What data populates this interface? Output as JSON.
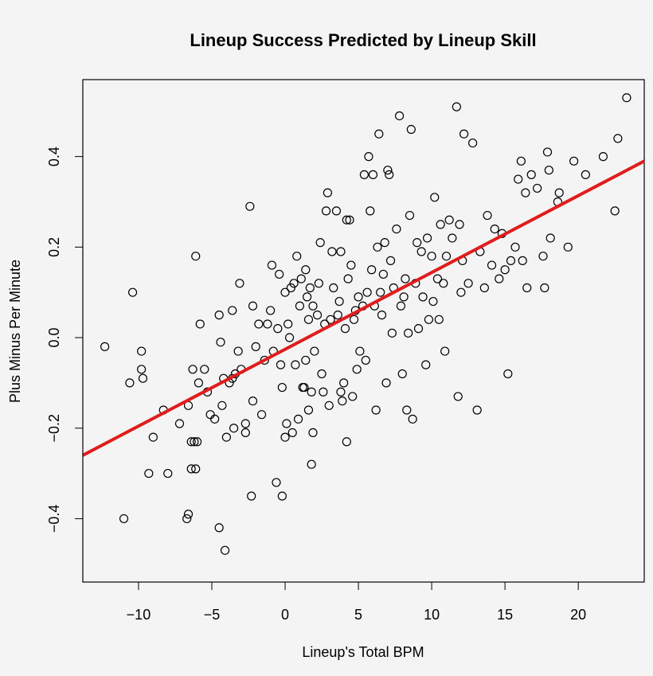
{
  "chart_data": {
    "type": "scatter",
    "title": "Lineup Success Predicted by Lineup Skill",
    "xlabel": "Lineup's Total BPM",
    "ylabel": "Plus Minus Per Minute",
    "xlim": [
      -13.8,
      24.5
    ],
    "ylim": [
      -0.54,
      0.57
    ],
    "x_ticks": [
      -10,
      -5,
      0,
      5,
      10,
      15,
      20
    ],
    "x_tick_labels": [
      "−10",
      "−5",
      "0",
      "5",
      "10",
      "15",
      "20"
    ],
    "y_ticks": [
      -0.4,
      -0.2,
      0.0,
      0.2,
      0.4
    ],
    "y_tick_labels": [
      "−0.4",
      "−0.2",
      "0.0",
      "0.2",
      "0.4"
    ],
    "grid": false,
    "marker_color": "#000000",
    "fit_line": {
      "color": "#e11c1c",
      "x": [
        -13.8,
        24.5
      ],
      "y": [
        -0.26,
        0.39
      ]
    },
    "points": [
      [
        -12.3,
        -0.02
      ],
      [
        -10.6,
        -0.1
      ],
      [
        -10.4,
        0.1
      ],
      [
        -9.8,
        -0.03
      ],
      [
        -9.8,
        -0.07
      ],
      [
        -9.7,
        -0.09
      ],
      [
        -9.3,
        -0.3
      ],
      [
        -9.0,
        -0.22
      ],
      [
        -11.0,
        -0.4
      ],
      [
        -8.3,
        -0.16
      ],
      [
        -8.0,
        -0.3
      ],
      [
        -7.2,
        -0.19
      ],
      [
        -6.7,
        -0.4
      ],
      [
        -6.6,
        -0.39
      ],
      [
        -6.6,
        -0.15
      ],
      [
        -6.4,
        -0.23
      ],
      [
        -6.4,
        -0.29
      ],
      [
        -6.3,
        -0.07
      ],
      [
        -6.2,
        -0.23
      ],
      [
        -6.1,
        0.18
      ],
      [
        -6.1,
        -0.29
      ],
      [
        -6.0,
        -0.23
      ],
      [
        -5.9,
        -0.1
      ],
      [
        -5.8,
        0.03
      ],
      [
        -5.5,
        -0.07
      ],
      [
        -5.3,
        -0.12
      ],
      [
        -5.1,
        -0.17
      ],
      [
        -4.8,
        -0.18
      ],
      [
        -4.5,
        -0.42
      ],
      [
        -4.5,
        0.05
      ],
      [
        -4.4,
        -0.01
      ],
      [
        -4.3,
        -0.15
      ],
      [
        -4.2,
        -0.09
      ],
      [
        -4.1,
        -0.47
      ],
      [
        -4.0,
        -0.22
      ],
      [
        -3.8,
        -0.1
      ],
      [
        -3.6,
        -0.09
      ],
      [
        -3.6,
        0.06
      ],
      [
        -3.5,
        -0.2
      ],
      [
        -3.4,
        -0.08
      ],
      [
        -3.2,
        -0.03
      ],
      [
        -3.1,
        0.12
      ],
      [
        -3.0,
        -0.07
      ],
      [
        -2.7,
        -0.21
      ],
      [
        -2.7,
        -0.19
      ],
      [
        -2.4,
        0.29
      ],
      [
        -2.3,
        -0.35
      ],
      [
        -2.2,
        0.07
      ],
      [
        -2.2,
        -0.14
      ],
      [
        -2.0,
        -0.02
      ],
      [
        -1.8,
        0.03
      ],
      [
        -1.6,
        -0.17
      ],
      [
        -1.4,
        -0.05
      ],
      [
        -1.2,
        0.03
      ],
      [
        -1.0,
        0.06
      ],
      [
        -0.9,
        0.16
      ],
      [
        -0.8,
        -0.03
      ],
      [
        -0.6,
        -0.32
      ],
      [
        -0.5,
        0.02
      ],
      [
        -0.4,
        0.14
      ],
      [
        -0.3,
        -0.06
      ],
      [
        -0.2,
        -0.35
      ],
      [
        -0.2,
        -0.11
      ],
      [
        0.0,
        0.1
      ],
      [
        0.0,
        -0.22
      ],
      [
        0.1,
        -0.19
      ],
      [
        0.2,
        0.03
      ],
      [
        0.3,
        0.0
      ],
      [
        0.4,
        0.11
      ],
      [
        0.5,
        -0.21
      ],
      [
        0.6,
        0.12
      ],
      [
        0.7,
        -0.06
      ],
      [
        0.8,
        0.18
      ],
      [
        0.9,
        -0.18
      ],
      [
        1.0,
        0.07
      ],
      [
        1.1,
        0.13
      ],
      [
        1.2,
        -0.11
      ],
      [
        1.3,
        -0.11
      ],
      [
        1.4,
        -0.05
      ],
      [
        1.4,
        0.15
      ],
      [
        1.5,
        0.09
      ],
      [
        1.6,
        0.04
      ],
      [
        1.6,
        -0.16
      ],
      [
        1.7,
        0.11
      ],
      [
        1.8,
        -0.12
      ],
      [
        1.8,
        -0.28
      ],
      [
        1.9,
        0.07
      ],
      [
        1.9,
        -0.21
      ],
      [
        2.0,
        -0.03
      ],
      [
        2.2,
        0.05
      ],
      [
        2.3,
        0.12
      ],
      [
        2.4,
        0.21
      ],
      [
        2.5,
        -0.08
      ],
      [
        2.6,
        -0.12
      ],
      [
        2.7,
        0.03
      ],
      [
        2.8,
        0.28
      ],
      [
        2.9,
        0.32
      ],
      [
        3.0,
        -0.15
      ],
      [
        3.1,
        0.04
      ],
      [
        3.2,
        0.19
      ],
      [
        3.3,
        0.11
      ],
      [
        3.5,
        0.28
      ],
      [
        3.6,
        0.05
      ],
      [
        3.7,
        0.08
      ],
      [
        3.8,
        0.19
      ],
      [
        3.8,
        -0.12
      ],
      [
        3.9,
        -0.14
      ],
      [
        4.0,
        -0.1
      ],
      [
        4.1,
        0.02
      ],
      [
        4.2,
        0.26
      ],
      [
        4.2,
        -0.23
      ],
      [
        4.3,
        0.13
      ],
      [
        4.4,
        0.26
      ],
      [
        4.5,
        0.16
      ],
      [
        4.6,
        -0.13
      ],
      [
        4.7,
        0.04
      ],
      [
        4.8,
        0.06
      ],
      [
        4.9,
        -0.07
      ],
      [
        5.0,
        0.09
      ],
      [
        5.1,
        -0.03
      ],
      [
        5.3,
        0.07
      ],
      [
        5.4,
        0.36
      ],
      [
        5.5,
        -0.05
      ],
      [
        5.6,
        0.1
      ],
      [
        5.7,
        0.4
      ],
      [
        5.8,
        0.28
      ],
      [
        5.9,
        0.15
      ],
      [
        6.0,
        0.36
      ],
      [
        6.1,
        0.07
      ],
      [
        6.2,
        -0.16
      ],
      [
        6.3,
        0.2
      ],
      [
        6.4,
        0.45
      ],
      [
        6.5,
        0.1
      ],
      [
        6.6,
        0.05
      ],
      [
        6.7,
        0.14
      ],
      [
        6.8,
        0.21
      ],
      [
        6.9,
        -0.1
      ],
      [
        7.0,
        0.37
      ],
      [
        7.1,
        0.36
      ],
      [
        7.2,
        0.17
      ],
      [
        7.3,
        0.01
      ],
      [
        7.4,
        0.11
      ],
      [
        7.6,
        0.24
      ],
      [
        7.8,
        0.49
      ],
      [
        7.9,
        0.07
      ],
      [
        8.0,
        -0.08
      ],
      [
        8.1,
        0.09
      ],
      [
        8.2,
        0.13
      ],
      [
        8.3,
        -0.16
      ],
      [
        8.4,
        0.01
      ],
      [
        8.5,
        0.27
      ],
      [
        8.6,
        0.46
      ],
      [
        8.7,
        -0.18
      ],
      [
        8.9,
        0.12
      ],
      [
        9.0,
        0.21
      ],
      [
        9.1,
        0.02
      ],
      [
        9.3,
        0.19
      ],
      [
        9.4,
        0.09
      ],
      [
        9.6,
        -0.06
      ],
      [
        9.7,
        0.22
      ],
      [
        9.8,
        0.04
      ],
      [
        10.0,
        0.18
      ],
      [
        10.1,
        0.08
      ],
      [
        10.2,
        0.31
      ],
      [
        10.4,
        0.13
      ],
      [
        10.5,
        0.04
      ],
      [
        10.6,
        0.25
      ],
      [
        10.8,
        0.12
      ],
      [
        10.9,
        -0.03
      ],
      [
        11.0,
        0.18
      ],
      [
        11.2,
        0.26
      ],
      [
        11.4,
        0.22
      ],
      [
        11.7,
        0.51
      ],
      [
        11.8,
        -0.13
      ],
      [
        11.9,
        0.25
      ],
      [
        12.0,
        0.1
      ],
      [
        12.1,
        0.17
      ],
      [
        12.2,
        0.45
      ],
      [
        12.5,
        0.12
      ],
      [
        12.8,
        0.43
      ],
      [
        13.1,
        -0.16
      ],
      [
        13.3,
        0.19
      ],
      [
        13.6,
        0.11
      ],
      [
        13.8,
        0.27
      ],
      [
        14.1,
        0.16
      ],
      [
        14.3,
        0.24
      ],
      [
        14.6,
        0.13
      ],
      [
        14.8,
        0.23
      ],
      [
        15.0,
        0.15
      ],
      [
        15.2,
        -0.08
      ],
      [
        15.4,
        0.17
      ],
      [
        15.7,
        0.2
      ],
      [
        15.9,
        0.35
      ],
      [
        16.1,
        0.39
      ],
      [
        16.2,
        0.17
      ],
      [
        16.4,
        0.32
      ],
      [
        16.5,
        0.11
      ],
      [
        16.8,
        0.36
      ],
      [
        17.2,
        0.33
      ],
      [
        17.6,
        0.18
      ],
      [
        17.7,
        0.11
      ],
      [
        17.9,
        0.41
      ],
      [
        18.0,
        0.37
      ],
      [
        18.1,
        0.22
      ],
      [
        18.6,
        0.3
      ],
      [
        18.7,
        0.32
      ],
      [
        19.3,
        0.2
      ],
      [
        19.7,
        0.39
      ],
      [
        20.5,
        0.36
      ],
      [
        21.7,
        0.4
      ],
      [
        22.5,
        0.28
      ],
      [
        22.7,
        0.44
      ],
      [
        23.3,
        0.53
      ]
    ]
  }
}
